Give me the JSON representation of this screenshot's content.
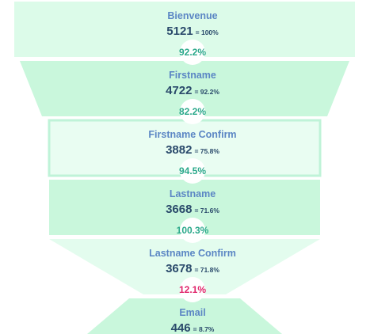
{
  "chart_data": {
    "type": "funnel",
    "stages": [
      {
        "name": "Bienvenue",
        "count": 5121,
        "count_text": "5121",
        "pct_text": "= 100%",
        "fill": "#dcfbe9",
        "border": "#dcfbe9",
        "highlight": false
      },
      {
        "name": "Firstname",
        "count": 4722,
        "count_text": "4722",
        "pct_text": "= 92.2%",
        "fill": "#c9f7dc",
        "border": "#c9f7dc",
        "highlight": false
      },
      {
        "name": "Firstname Confirm",
        "count": 3882,
        "count_text": "3882",
        "pct_text": "= 75.8%",
        "fill": "#e9fdf2",
        "border": "#bff3d8",
        "highlight": true
      },
      {
        "name": "Lastname",
        "count": 3668,
        "count_text": "3668",
        "pct_text": "= 71.6%",
        "fill": "#c9f7dc",
        "border": "#c9f7dc",
        "highlight": false
      },
      {
        "name": "Lastname Confirm",
        "count": 3678,
        "count_text": "3678",
        "pct_text": "= 71.8%",
        "fill": "#e3fcee",
        "border": "#e3fcee",
        "highlight": false
      },
      {
        "name": "Email",
        "count": 446,
        "count_text": "446",
        "pct_text": "= 8.7%",
        "fill": "#c9f7dc",
        "border": "#c9f7dc",
        "highlight": false
      }
    ],
    "conversions": [
      {
        "text": "92.2%",
        "value": 92.2,
        "status": "good"
      },
      {
        "text": "82.2%",
        "value": 82.2,
        "status": "good"
      },
      {
        "text": "94.5%",
        "value": 94.5,
        "status": "good"
      },
      {
        "text": "100.3%",
        "value": 100.3,
        "status": "good"
      },
      {
        "text": "12.1%",
        "value": 12.1,
        "status": "bad"
      }
    ],
    "colors": {
      "stage_name": "#5b86c4",
      "count_text": "#2a4a6b",
      "good": "#2aa88a",
      "bad": "#e0246a",
      "bubble": "#ffffff"
    }
  }
}
